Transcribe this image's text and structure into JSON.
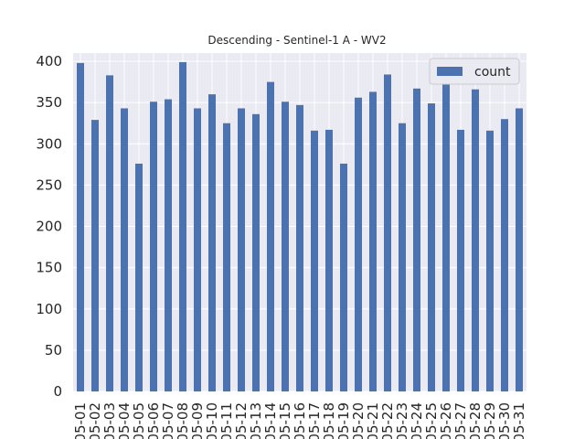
{
  "chart_data": {
    "type": "bar",
    "title": "Descending - Sentinel-1 A - WV2",
    "xlabel": "",
    "ylabel": "",
    "categories": [
      "05-01",
      "05-02",
      "05-03",
      "05-04",
      "05-05",
      "05-06",
      "05-07",
      "05-08",
      "05-09",
      "05-10",
      "05-11",
      "05-12",
      "05-13",
      "05-14",
      "05-15",
      "05-16",
      "05-17",
      "05-18",
      "05-19",
      "05-20",
      "05-21",
      "05-22",
      "05-23",
      "05-24",
      "05-25",
      "05-26",
      "05-27",
      "05-28",
      "05-29",
      "05-30",
      "05-31"
    ],
    "series": [
      {
        "name": "count",
        "color": "#4c72b0",
        "values": [
          398,
          329,
          383,
          343,
          276,
          351,
          354,
          399,
          343,
          360,
          325,
          343,
          336,
          375,
          351,
          347,
          316,
          317,
          276,
          356,
          363,
          384,
          325,
          367,
          349,
          375,
          317,
          366,
          316,
          330,
          343
        ]
      }
    ],
    "ylim": [
      0,
      410
    ],
    "yticks": [
      0,
      50,
      100,
      150,
      200,
      250,
      300,
      350,
      400
    ],
    "grid": true,
    "legend_position": "top-right",
    "background_color": "#eaeaf2"
  }
}
